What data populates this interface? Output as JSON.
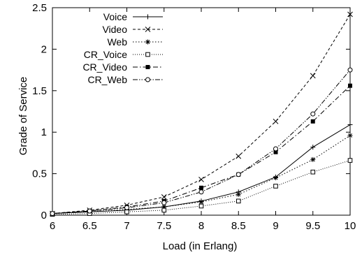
{
  "chart_data": {
    "type": "line",
    "xlabel": "Load (in Erlang)",
    "ylabel": "Grade of Service",
    "xlim": [
      6,
      10
    ],
    "ylim": [
      0,
      2.5
    ],
    "x_ticks": [
      "6",
      "6.5",
      "7",
      "7.5",
      "8",
      "8.5",
      "9",
      "9.5",
      "10"
    ],
    "y_ticks": [
      "0",
      "0.5",
      "1",
      "1.5",
      "2",
      "2.5"
    ],
    "grid": false,
    "legend_position": "top-left",
    "x": [
      6,
      6.5,
      7,
      7.5,
      8,
      8.5,
      9,
      9.5,
      10
    ],
    "series": [
      {
        "name": "Voice",
        "marker": "plus",
        "dash": "solid",
        "values": [
          0.02,
          0.04,
          0.06,
          0.1,
          0.17,
          0.28,
          0.46,
          0.82,
          1.09
        ]
      },
      {
        "name": "Video",
        "marker": "x",
        "dash": "dashed",
        "values": [
          0.02,
          0.06,
          0.12,
          0.22,
          0.43,
          0.71,
          1.13,
          1.68,
          2.42
        ]
      },
      {
        "name": "Web",
        "marker": "star",
        "dash": "dotted",
        "values": [
          0.02,
          0.04,
          0.07,
          0.1,
          0.16,
          0.25,
          0.45,
          0.67,
          0.96
        ]
      },
      {
        "name": "CR_Voice",
        "marker": "square-open",
        "dash": "fine-dotted",
        "values": [
          0.01,
          0.02,
          0.04,
          0.06,
          0.11,
          0.17,
          0.35,
          0.52,
          0.66
        ]
      },
      {
        "name": "CR_Video",
        "marker": "square-filled",
        "dash": "dashdot",
        "values": [
          0.02,
          0.05,
          0.1,
          0.17,
          0.33,
          0.49,
          0.76,
          1.13,
          1.56
        ]
      },
      {
        "name": "CR_Web",
        "marker": "circle-open",
        "dash": "dashdotdot",
        "values": [
          0.02,
          0.05,
          0.09,
          0.15,
          0.28,
          0.49,
          0.8,
          1.22,
          1.75
        ]
      }
    ]
  }
}
